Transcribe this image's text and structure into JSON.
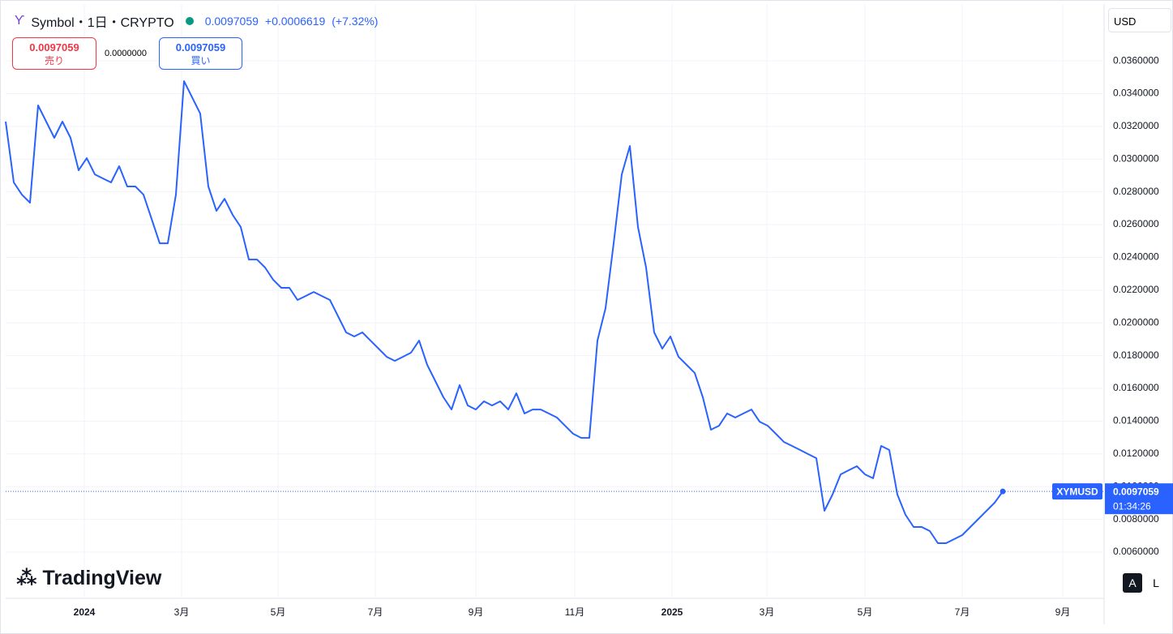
{
  "chart_data": {
    "type": "line",
    "title": "Symbol・1日・CRYPTO",
    "symbol": "XYMUSD",
    "last_price": 0.0097059,
    "change": "+0.0006619",
    "change_pct": "(+7.32%)",
    "sell_label": "売り",
    "buy_label": "買い",
    "spread": "0.0000000",
    "currency": "USD",
    "countdown": "01:34:26",
    "brand": "TradingView",
    "auto_button": "A",
    "log_button": "L",
    "color": "#2962ff",
    "values": [
      0.03229,
      0.02858,
      0.02783,
      0.02734,
      0.03328,
      0.03229,
      0.0313,
      0.03229,
      0.0313,
      0.02932,
      0.03006,
      0.02907,
      0.02882,
      0.02858,
      0.02957,
      0.02833,
      0.02833,
      0.02783,
      0.02635,
      0.02486,
      0.02486,
      0.02783,
      0.03476,
      0.03377,
      0.03278,
      0.02833,
      0.02684,
      0.02758,
      0.0266,
      0.02585,
      0.02387,
      0.02387,
      0.02338,
      0.02263,
      0.02214,
      0.02214,
      0.0214,
      0.02164,
      0.02189,
      0.02164,
      0.0214,
      0.02041,
      0.01942,
      0.01917,
      0.01942,
      0.01892,
      0.01843,
      0.01793,
      0.01768,
      0.01793,
      0.01818,
      0.01892,
      0.01744,
      0.01645,
      0.01546,
      0.01471,
      0.0162,
      0.01496,
      0.01471,
      0.01521,
      0.01496,
      0.01521,
      0.01471,
      0.0157,
      0.01447,
      0.01471,
      0.01471,
      0.01447,
      0.01422,
      0.01372,
      0.01323,
      0.01298,
      0.01298,
      0.01892,
      0.0209,
      0.02486,
      0.02907,
      0.0308,
      0.02585,
      0.02338,
      0.01942,
      0.01843,
      0.01917,
      0.01793,
      0.01744,
      0.01694,
      0.01546,
      0.01348,
      0.01372,
      0.01447,
      0.01422,
      0.01447,
      0.01471,
      0.01397,
      0.01372,
      0.01323,
      0.01273,
      0.01249,
      0.01224,
      0.01199,
      0.01174,
      0.008527,
      0.009518,
      0.01075,
      0.011,
      0.01125,
      0.01075,
      0.01051,
      0.01249,
      0.01224,
      0.009518,
      0.00828,
      0.007537,
      0.007537,
      0.00729,
      0.006547,
      0.006547,
      0.006795,
      0.007042,
      0.007537,
      0.008032,
      0.008527,
      0.009022,
      0.0097059
    ],
    "xlim": [
      0,
      135.5
    ],
    "xticks": [
      {
        "value": 9.7,
        "label": "2024"
      },
      {
        "value": 21.7,
        "label": "3月"
      },
      {
        "value": 33.6,
        "label": "5月"
      },
      {
        "value": 45.6,
        "label": "7月"
      },
      {
        "value": 58,
        "label": "9月"
      },
      {
        "value": 70.2,
        "label": "11月"
      },
      {
        "value": 82.2,
        "label": "2025"
      },
      {
        "value": 93.9,
        "label": "3月"
      },
      {
        "value": 106,
        "label": "5月"
      },
      {
        "value": 118,
        "label": "7月"
      },
      {
        "value": 130.4,
        "label": "9月"
      }
    ],
    "ylim": [
      0.00318,
      0.03947
    ],
    "yticks": [
      {
        "value": 0.006,
        "label": "0.0060000"
      },
      {
        "value": 0.008,
        "label": "0.0080000"
      },
      {
        "value": 0.01,
        "label": "0.0100000"
      },
      {
        "value": 0.012,
        "label": "0.0120000"
      },
      {
        "value": 0.014,
        "label": "0.0140000"
      },
      {
        "value": 0.016,
        "label": "0.0160000"
      },
      {
        "value": 0.018,
        "label": "0.0180000"
      },
      {
        "value": 0.02,
        "label": "0.0200000"
      },
      {
        "value": 0.022,
        "label": "0.0220000"
      },
      {
        "value": 0.024,
        "label": "0.0240000"
      },
      {
        "value": 0.026,
        "label": "0.0260000"
      },
      {
        "value": 0.028,
        "label": "0.0280000"
      },
      {
        "value": 0.03,
        "label": "0.0300000"
      },
      {
        "value": 0.032,
        "label": "0.0320000"
      },
      {
        "value": 0.034,
        "label": "0.0340000"
      },
      {
        "value": 0.036,
        "label": "0.0360000"
      }
    ],
    "grid": true
  }
}
